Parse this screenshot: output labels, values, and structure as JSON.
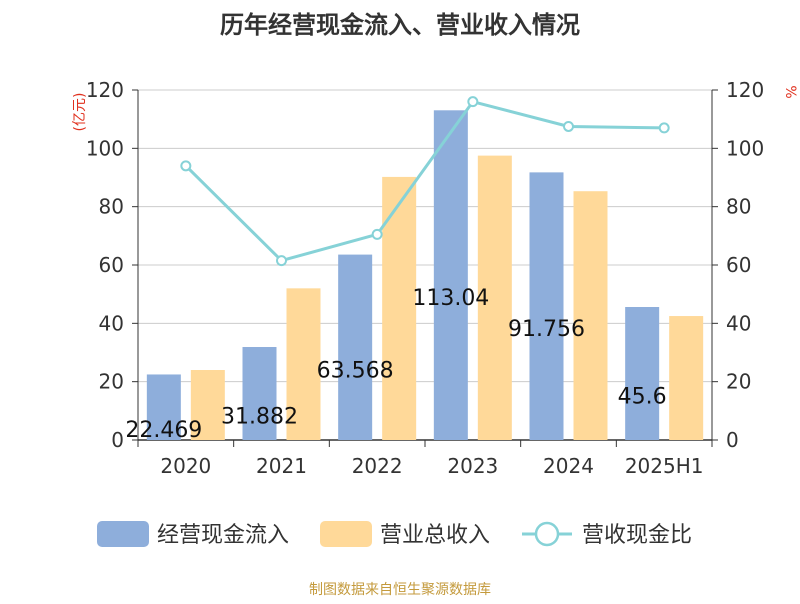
{
  "chart_data": {
    "type": "bar",
    "title": "历年经营现金流入、营业收入情况",
    "left_unit": "(亿元)",
    "right_unit": "%",
    "categories": [
      "2020",
      "2021",
      "2022",
      "2023",
      "2024",
      "2025H1"
    ],
    "ylim_left": [
      0,
      120
    ],
    "ylim_right": [
      0,
      120
    ],
    "yticks_left": [
      0,
      20,
      40,
      60,
      80,
      100,
      120
    ],
    "yticks_right": [
      0,
      20,
      40,
      60,
      80,
      100,
      120
    ],
    "grid": true,
    "legend_position": "bottom",
    "series": [
      {
        "name": "经营现金流入",
        "kind": "bar",
        "axis": "left",
        "color": "#8eaedb",
        "values": [
          22.469,
          31.882,
          63.568,
          113.04,
          91.756,
          45.6
        ],
        "data_labels": [
          "22.469",
          "31.882",
          "63.568",
          "113.04",
          "91.756",
          "45.6"
        ]
      },
      {
        "name": "营业总收入",
        "kind": "bar",
        "axis": "left",
        "color": "#ffd999",
        "values": [
          24.0,
          52.0,
          90.2,
          97.5,
          85.3,
          42.5
        ]
      },
      {
        "name": "营收现金比",
        "kind": "line",
        "axis": "right",
        "color": "#86d2d7",
        "values": [
          94.0,
          61.5,
          70.5,
          116.0,
          107.5,
          107.0
        ]
      }
    ]
  },
  "footer": {
    "source": "制图数据来自恒生聚源数据库"
  }
}
